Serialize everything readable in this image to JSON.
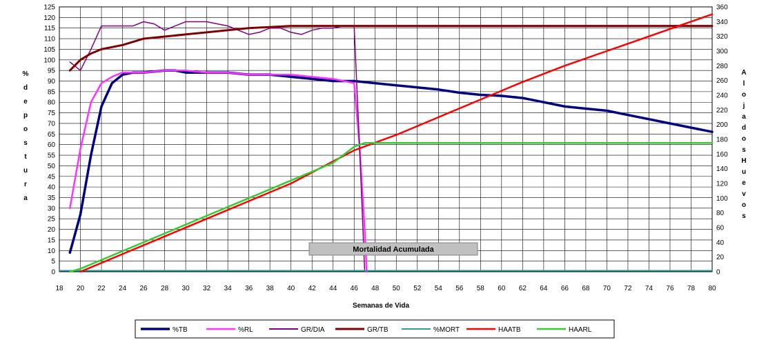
{
  "chart_data": {
    "type": "line",
    "xlabel": "Semanas de Vida",
    "ylabel_left": [
      "%",
      "d",
      "e",
      "p",
      "o",
      "s",
      "t",
      "u",
      "r",
      "a"
    ],
    "ylabel_right": [
      "A",
      "l",
      "o",
      "j",
      "a",
      "d",
      "o",
      "s",
      "H",
      "u",
      "e",
      "v",
      "o",
      "s"
    ],
    "xlim": [
      18,
      80
    ],
    "ylim_left": [
      0,
      125
    ],
    "ylim_right": [
      0,
      360
    ],
    "x_ticks": [
      18,
      20,
      22,
      24,
      26,
      28,
      30,
      32,
      34,
      36,
      38,
      40,
      42,
      44,
      46,
      48,
      50,
      52,
      54,
      56,
      58,
      60,
      62,
      64,
      66,
      68,
      70,
      72,
      74,
      76,
      78,
      80
    ],
    "y_ticks_left": [
      0,
      5,
      10,
      15,
      20,
      25,
      30,
      35,
      40,
      45,
      50,
      55,
      60,
      65,
      70,
      75,
      80,
      85,
      90,
      95,
      100,
      105,
      110,
      115,
      120,
      125
    ],
    "y_ticks_right": [
      0,
      20,
      40,
      60,
      80,
      100,
      120,
      140,
      160,
      180,
      200,
      220,
      240,
      260,
      280,
      300,
      320,
      340,
      360
    ],
    "grid": true,
    "legend_position": "bottom",
    "annotation": "Mortalidad Acumulada",
    "series": [
      {
        "name": "%TB",
        "color": "#000080",
        "axis": "left",
        "width": 3.5,
        "points": [
          [
            19,
            9
          ],
          [
            20,
            27
          ],
          [
            21,
            55
          ],
          [
            22,
            78
          ],
          [
            23,
            89
          ],
          [
            24,
            93
          ],
          [
            25,
            94
          ],
          [
            26,
            94
          ],
          [
            27,
            94.5
          ],
          [
            28,
            95
          ],
          [
            29,
            95
          ],
          [
            30,
            94
          ],
          [
            32,
            94
          ],
          [
            34,
            94
          ],
          [
            36,
            93
          ],
          [
            38,
            93
          ],
          [
            40,
            92
          ],
          [
            42,
            91
          ],
          [
            44,
            90
          ],
          [
            46,
            90
          ],
          [
            48,
            89
          ],
          [
            50,
            88
          ],
          [
            52,
            87
          ],
          [
            54,
            86
          ],
          [
            56,
            84.5
          ],
          [
            58,
            83.5
          ],
          [
            60,
            83
          ],
          [
            62,
            82
          ],
          [
            64,
            80
          ],
          [
            66,
            78
          ],
          [
            68,
            77
          ],
          [
            70,
            76
          ],
          [
            72,
            74
          ],
          [
            74,
            72
          ],
          [
            76,
            70
          ],
          [
            78,
            68
          ],
          [
            80,
            66
          ]
        ]
      },
      {
        "name": "%RL",
        "color": "#ff33ff",
        "axis": "left",
        "width": 2.5,
        "points": [
          [
            19,
            30
          ],
          [
            20,
            58
          ],
          [
            21,
            80
          ],
          [
            22,
            89
          ],
          [
            23,
            92
          ],
          [
            24,
            94
          ],
          [
            26,
            94
          ],
          [
            28,
            95
          ],
          [
            30,
            95
          ],
          [
            32,
            94
          ],
          [
            34,
            94
          ],
          [
            36,
            93
          ],
          [
            38,
            93
          ],
          [
            40,
            93
          ],
          [
            42,
            92
          ],
          [
            44,
            91
          ],
          [
            45,
            90
          ],
          [
            46,
            89
          ],
          [
            46.5,
            60
          ],
          [
            47,
            20
          ],
          [
            47.2,
            0
          ]
        ]
      },
      {
        "name": "GR/DIA",
        "color": "#800080",
        "axis": "left",
        "width": 1.5,
        "points": [
          [
            19,
            99
          ],
          [
            20,
            95
          ],
          [
            21,
            105
          ],
          [
            22,
            116
          ],
          [
            23,
            116
          ],
          [
            24,
            116
          ],
          [
            25,
            116
          ],
          [
            26,
            118
          ],
          [
            27,
            117
          ],
          [
            28,
            114
          ],
          [
            29,
            116
          ],
          [
            30,
            118
          ],
          [
            31,
            118
          ],
          [
            32,
            118
          ],
          [
            33,
            117
          ],
          [
            34,
            116
          ],
          [
            35,
            114
          ],
          [
            36,
            112
          ],
          [
            37,
            113
          ],
          [
            38,
            115
          ],
          [
            39,
            115
          ],
          [
            40,
            113
          ],
          [
            41,
            112
          ],
          [
            42,
            114
          ],
          [
            43,
            115
          ],
          [
            44,
            115
          ],
          [
            45,
            116
          ],
          [
            46,
            116
          ],
          [
            46.5,
            60
          ],
          [
            47,
            0
          ]
        ]
      },
      {
        "name": "GR/TB",
        "color": "#800000",
        "axis": "left",
        "width": 3,
        "points": [
          [
            19,
            95
          ],
          [
            20,
            100
          ],
          [
            21,
            103
          ],
          [
            22,
            105
          ],
          [
            24,
            107
          ],
          [
            26,
            110
          ],
          [
            28,
            111
          ],
          [
            30,
            112
          ],
          [
            32,
            113
          ],
          [
            34,
            114
          ],
          [
            36,
            115
          ],
          [
            38,
            115.5
          ],
          [
            40,
            116
          ],
          [
            80,
            116
          ]
        ]
      },
      {
        "name": "%MORT",
        "color": "#339999",
        "axis": "left",
        "width": 2,
        "points": [
          [
            18,
            0.5
          ],
          [
            80,
            0.5
          ]
        ]
      },
      {
        "name": "HAATB",
        "color": "#ff0000",
        "axis": "right",
        "width": 2.5,
        "points": [
          [
            20,
            0
          ],
          [
            24,
            24
          ],
          [
            28,
            48
          ],
          [
            32,
            72
          ],
          [
            36,
            96
          ],
          [
            40,
            120
          ],
          [
            44,
            150
          ],
          [
            46,
            165
          ],
          [
            50,
            186
          ],
          [
            54,
            210
          ],
          [
            58,
            234
          ],
          [
            62,
            258
          ],
          [
            66,
            280
          ],
          [
            70,
            300
          ],
          [
            74,
            320
          ],
          [
            78,
            340
          ],
          [
            80,
            350
          ]
        ]
      },
      {
        "name": "HAARL",
        "color": "#33cc33",
        "axis": "right",
        "width": 2.5,
        "points": [
          [
            19,
            0
          ],
          [
            20,
            4
          ],
          [
            24,
            28
          ],
          [
            28,
            52
          ],
          [
            32,
            76
          ],
          [
            36,
            100
          ],
          [
            40,
            124
          ],
          [
            44,
            148
          ],
          [
            46,
            170
          ],
          [
            47,
            175
          ],
          [
            80,
            175
          ]
        ]
      }
    ]
  }
}
